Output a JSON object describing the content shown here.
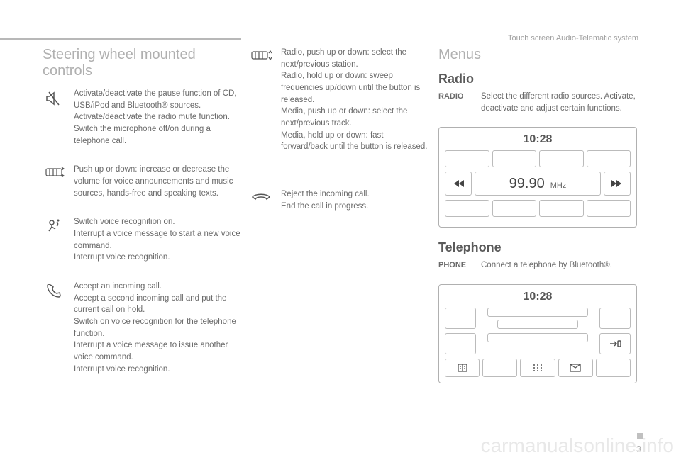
{
  "breadcrumb": "Touch screen Audio-Telematic system",
  "page_number": "3",
  "watermark": "carmanualsonline.info",
  "col1": {
    "heading": "Steering wheel mounted controls",
    "items": [
      {
        "name": "mute-control",
        "icon": "speaker-mute-icon",
        "text": "Activate/deactivate the pause function of CD, USB/iPod and Bluetooth® sources.\nActivate/deactivate the radio mute function.\nSwitch the microphone off/on during a telephone call."
      },
      {
        "name": "volume-control",
        "icon": "scroll-updown-icon",
        "text": "Push up or down: increase or decrease the volume for voice announcements and music sources, hands-free and speaking texts."
      },
      {
        "name": "voice-control",
        "icon": "voice-icon",
        "text": "Switch voice recognition on.\nInterrupt a voice message to start a new voice command.\nInterrupt voice recognition."
      },
      {
        "name": "accept-call-control",
        "icon": "phone-icon",
        "text": "Accept an incoming call.\nAccept a second incoming call and put the current call on hold.\nSwitch on voice recognition for the telephone function.\nInterrupt a voice message to issue another voice command.\nInterrupt voice recognition."
      }
    ]
  },
  "col2": {
    "items": [
      {
        "name": "station-control",
        "icon": "scroll-vert-icon",
        "text": "Radio, push up or down: select the next/previous station.\nRadio, hold up or down: sweep frequencies up/down until the button is released.\nMedia, push up or down: select the next/previous track.\nMedia, hold up or down: fast forward/back until the button is released."
      },
      {
        "name": "reject-call-control",
        "icon": "hangup-icon",
        "text": "Reject the incoming call.\nEnd the call in progress."
      }
    ]
  },
  "col3": {
    "heading": "Menus",
    "radio": {
      "heading": "Radio",
      "label": "RADIO",
      "text": "Select the different radio sources. Activate, deactivate and adjust certain functions.",
      "screen": {
        "time": "10:28",
        "freq": "99.90",
        "unit": "MHz"
      }
    },
    "telephone": {
      "heading": "Telephone",
      "label": "PHONE",
      "text": "Connect a telephone by Bluetooth®.",
      "screen": {
        "time": "10:28"
      }
    }
  }
}
